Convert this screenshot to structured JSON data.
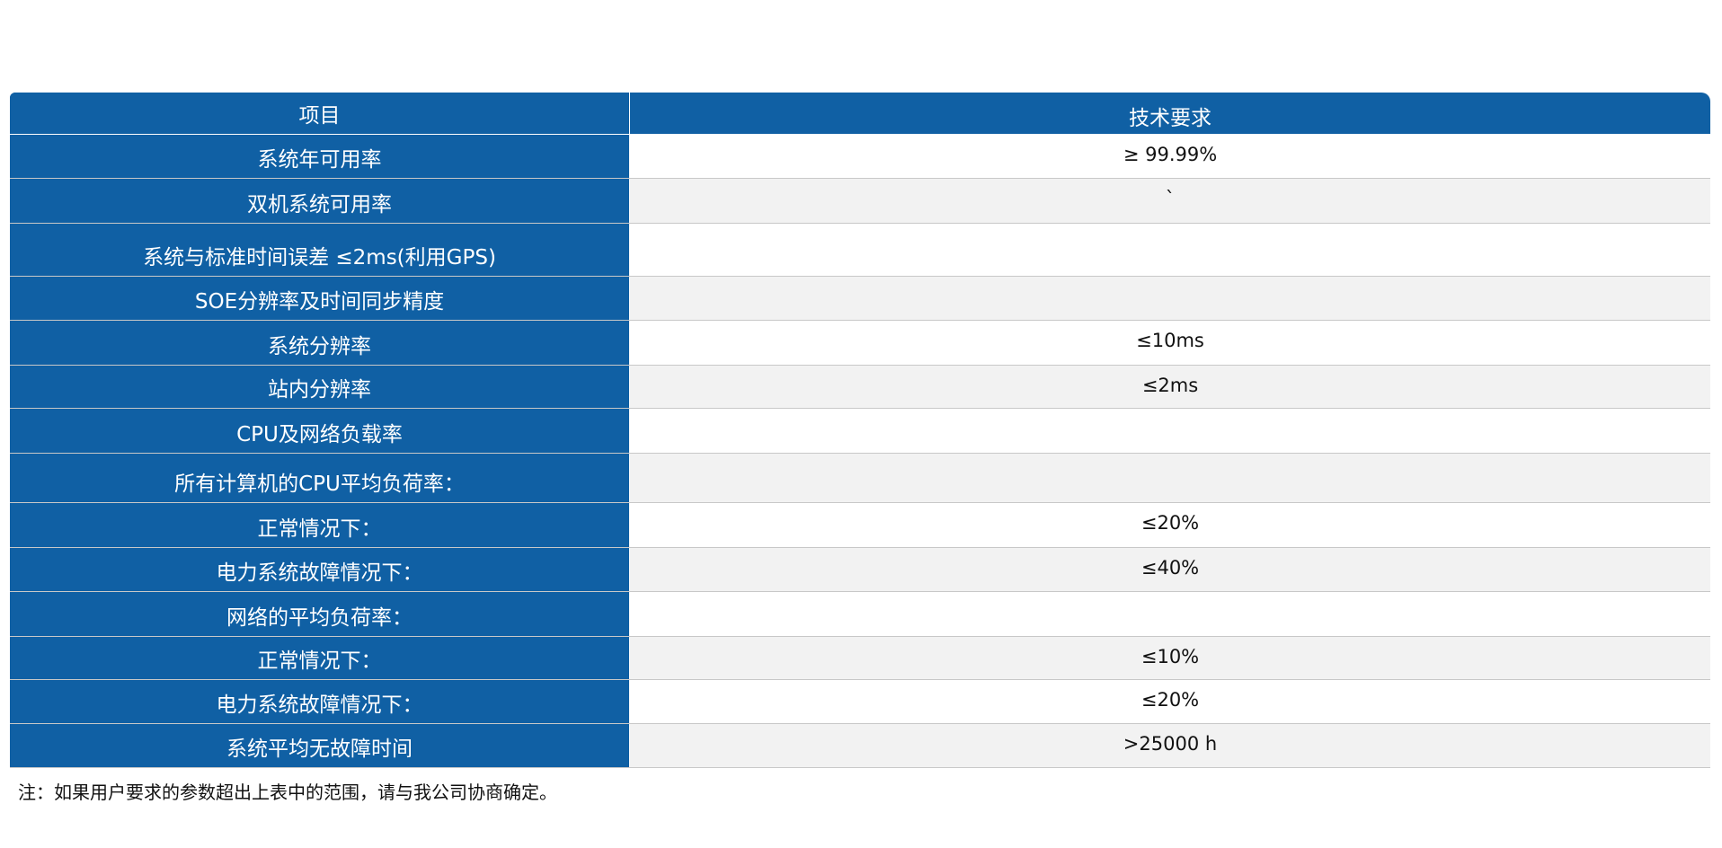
{
  "table": {
    "headers": [
      "项目",
      "技术要求"
    ],
    "rows": [
      {
        "item": "系统年可用率",
        "requirement": "≥ 99.99%"
      },
      {
        "item": "双机系统可用率",
        "requirement": "`"
      },
      {
        "item": "系统与标准时间误差 ≤2ms(利用GPS)",
        "requirement": ""
      },
      {
        "item": "SOE分辨率及时间同步精度",
        "requirement": ""
      },
      {
        "item": "系统分辨率",
        "requirement": "≤10ms"
      },
      {
        "item": "站内分辨率",
        "requirement": "≤2ms"
      },
      {
        "item": "CPU及网络负载率",
        "requirement": ""
      },
      {
        "item": "所有计算机的CPU平均负荷率：",
        "requirement": ""
      },
      {
        "item": "正常情况下：",
        "requirement": "≤20%"
      },
      {
        "item": "电力系统故障情况下：",
        "requirement": "≤40%"
      },
      {
        "item": "网络的平均负荷率：",
        "requirement": ""
      },
      {
        "item": "正常情况下：",
        "requirement": "≤10%"
      },
      {
        "item": "电力系统故障情况下：",
        "requirement": "≤20%"
      },
      {
        "item": "系统平均无故障时间",
        "requirement": ">25000 h"
      }
    ]
  },
  "note": "注：如果用户要求的参数超出上表中的范围，请与我公司协商确定。",
  "colors": {
    "header_blue": "#1060a4",
    "stripe": "#f2f2f2"
  }
}
